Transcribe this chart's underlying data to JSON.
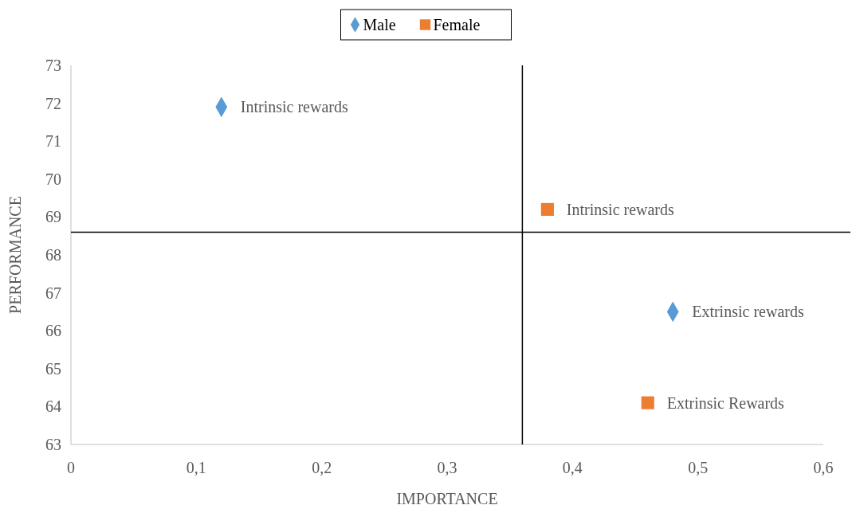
{
  "chart_data": {
    "type": "scatter",
    "xlabel": "IMPORTANCE",
    "ylabel": "PERFORMANCE",
    "xlim": [
      0,
      0.6
    ],
    "ylim": [
      63,
      73
    ],
    "xticks": [
      {
        "value": 0,
        "label": "0"
      },
      {
        "value": 0.1,
        "label": "0,1"
      },
      {
        "value": 0.2,
        "label": "0,2"
      },
      {
        "value": 0.3,
        "label": "0,3"
      },
      {
        "value": 0.4,
        "label": "0,4"
      },
      {
        "value": 0.5,
        "label": "0,5"
      },
      {
        "value": 0.6,
        "label": "0,6"
      }
    ],
    "yticks": [
      63,
      64,
      65,
      66,
      67,
      68,
      69,
      70,
      71,
      72,
      73
    ],
    "series": [
      {
        "name": "Male",
        "color": "#5b9bd5",
        "marker": "diamond",
        "x": [
          0.12,
          0.48
        ],
        "values": [
          71.9,
          66.5
        ]
      },
      {
        "name": "Female",
        "color": "#ed7d31",
        "marker": "square",
        "x": [
          0.38,
          0.46
        ],
        "values": [
          69.2,
          64.1
        ]
      }
    ],
    "ref_lines": [
      {
        "axis": "x",
        "value": 0.36,
        "color": "#000000"
      },
      {
        "axis": "y",
        "value": 68.6,
        "color": "#000000"
      }
    ],
    "annotations": [
      {
        "text": "Intrinsic rewards",
        "x": 0.12,
        "y": 71.9
      },
      {
        "text": "Extrinsic rewards",
        "x": 0.48,
        "y": 66.5
      },
      {
        "text": "Intrinsic rewards",
        "x": 0.38,
        "y": 69.2
      },
      {
        "text": "Extrinsic Rewards",
        "x": 0.46,
        "y": 64.1
      }
    ],
    "legend": "top",
    "grid": false
  }
}
